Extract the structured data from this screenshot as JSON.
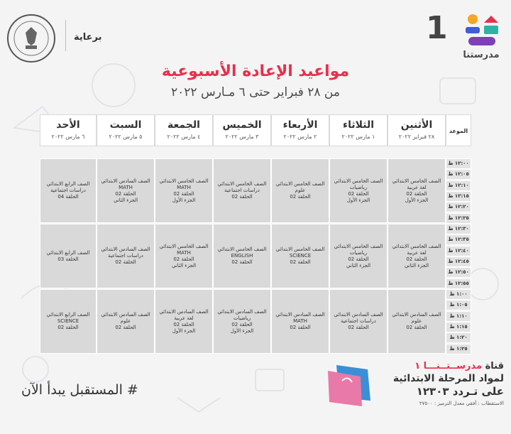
{
  "header": {
    "sponsor_label": "برعاية",
    "brand_number": "1",
    "brand_name": "مدرستنا",
    "title": "مواعيد الإعادة الأسبوعية",
    "subtitle": "من ٢٨ فبراير حتى ٦ مـارس ٢٠٢٢"
  },
  "table": {
    "time_header": "الموعد",
    "days": [
      {
        "day": "الأثنين",
        "date": "٢٨ فبراير ٢٠٢٢"
      },
      {
        "day": "الثلاثاء",
        "date": "١ مارس ٢٠٢٢"
      },
      {
        "day": "الأربعاء",
        "date": "٢ مارس ٢٠٢٢"
      },
      {
        "day": "الخميس",
        "date": "٣ مارس ٢٠٢٢"
      },
      {
        "day": "الجمعة",
        "date": "٤ مارس ٢٠٢٢"
      },
      {
        "day": "السبت",
        "date": "٥ مارس ٢٠٢٢"
      },
      {
        "day": "الأحد",
        "date": "٦ مارس ٢٠٢٢"
      }
    ],
    "times": [
      "١٢:٠٠ ظ",
      "١٢:٠٥ ظ",
      "١٢:١٠ ظ",
      "١٢:١٥ ظ",
      "١٢:٢٠ ظ",
      "١٢:٢٥ ظ",
      "١٢:٣٠ ظ",
      "١٢:٣٥ ظ",
      "١٢:٤٠ ظ",
      "١٢:٤٥ ظ",
      "١٢:٥٠ ظ",
      "١٢:٥٥ ظ",
      "١:٠٠ ظ",
      "١:٠٥ ظ",
      "١:١٠ ظ",
      "١:١٥ ظ",
      "١:٢٠ ظ",
      "١:٢٥ ظ"
    ],
    "blocks": [
      [
        [
          "الصف الخامس الابتدائي",
          "لغة عربية",
          "الحلقة 02",
          "الجزء الأول"
        ],
        [
          "الصف الخامس الابتدائي",
          "رياضيات",
          "الحلقة 02",
          "الجزء الأول"
        ],
        [
          "الصف الخامس الابتدائي",
          "علوم",
          "الحلقة 02"
        ],
        [
          "الصف الخامس الابتدائي",
          "دراسات اجتماعية",
          "الحلقة 02"
        ],
        [
          "الصف الخامس الابتدائي",
          "MATH",
          "الحلقة 02",
          "الجزء الأول"
        ],
        [
          "الصف السادس الابتدائي",
          "MATH",
          "الحلقة 02",
          "الجزء الثاني"
        ],
        [
          "الصف الرابع الابتدائي",
          "دراسات اجتماعية",
          "الحلقة 04"
        ]
      ],
      [
        [
          "الصف الخامس الابتدائي",
          "لغة عربية",
          "الحلقة 02",
          "الجزء الثاني"
        ],
        [
          "الصف الخامس الابتدائي",
          "رياضيات",
          "الحلقة 02",
          "الجزء الثاني"
        ],
        [
          "الصف الخامس الابتدائي",
          "SCIENCE",
          "الحلقة 02"
        ],
        [
          "الصف الخامس الابتدائي",
          "ENGLISH",
          "الحلقة 02"
        ],
        [
          "الصف الخامس الابتدائي",
          "MATH",
          "الحلقة 02",
          "الجزء الثاني"
        ],
        [
          "الصف السادس الابتدائي",
          "دراسات اجتماعية",
          "الحلقة 02"
        ],
        [
          "الصف الرابع الابتدائي",
          "الحلقة 03"
        ]
      ],
      [
        [
          "الصف السادس الابتدائي",
          "علوم",
          "الحلقة 02"
        ],
        [
          "الصف السادس الابتدائي",
          "دراسات اجتماعية",
          "الحلقة 02"
        ],
        [
          "الصف السادس الابتدائي",
          "MATH",
          "الحلقة 02"
        ],
        [
          "الصف السادس الابتدائي",
          "رياضيات",
          "الحلقة 02",
          "الجزء الأول"
        ],
        [
          "الصف السادس الابتدائي",
          "لغة عربية",
          "الحلقة 02",
          "الجزء الأول"
        ],
        [
          "الصف السادس الابتدائي",
          "علوم",
          "الحلقة 02"
        ],
        [
          "الصف الرابع الابتدائي",
          "SCIENCE",
          "الحلقة 02"
        ]
      ]
    ]
  },
  "footer": {
    "hashtag": "# المستقبل يبدأ الآن",
    "channel_word": "قناة",
    "channel_name": "مدرســتــنـــا ١",
    "line2": "لمواد المرحلة الابتدائية",
    "line3": "على تـردد ١٢٣٠٣",
    "line4": "الاستقطاب : أفقي معدل الترميز : ٢٧٥٠٠"
  },
  "colors": {
    "accent_red": "#e8304c",
    "cell_gray": "#d9d9da",
    "background": "#f4f4f5"
  }
}
